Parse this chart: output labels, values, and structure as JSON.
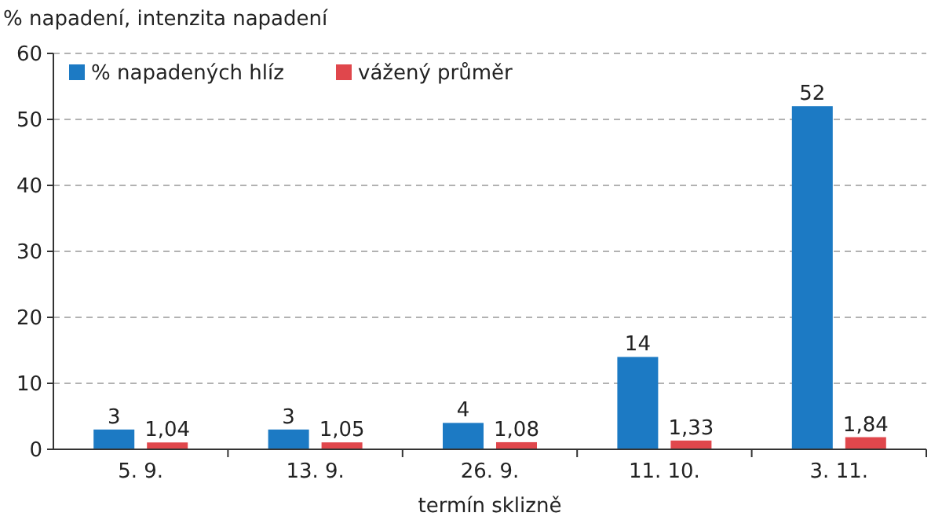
{
  "chart_data": {
    "type": "bar",
    "ylabel": "% napadení, intenzita napadení",
    "xlabel": "termín sklizně",
    "categories": [
      "5. 9.",
      "13. 9.",
      "26. 9.",
      "11. 10.",
      "3. 11."
    ],
    "series": [
      {
        "name": "% napadených hlíz",
        "color": "#1c7ac4",
        "values": [
          3,
          3,
          4,
          14,
          52
        ],
        "value_labels": [
          "3",
          "3",
          "4",
          "14",
          "52"
        ]
      },
      {
        "name": "vážený průměr",
        "color": "#e0474c",
        "values": [
          1.04,
          1.05,
          1.08,
          1.33,
          1.84
        ],
        "value_labels": [
          "1,04",
          "1,05",
          "1,08",
          "1,33",
          "1,84"
        ]
      }
    ],
    "ylim": [
      0,
      60
    ],
    "yticks": [
      0,
      10,
      20,
      30,
      40,
      50,
      60
    ],
    "grid": "y",
    "legend": "top left"
  }
}
